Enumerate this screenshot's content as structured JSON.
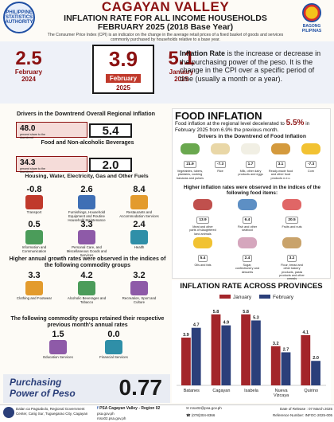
{
  "header": {
    "title": "CAGAYAN VALLEY",
    "subtitle": "INFLATION RATE FOR ALL INCOME HOUSEHOLDS",
    "period": "FEBRUARY 2025 (2018 Base Year)",
    "cpi_note": "The Consumer Price Index (CPI) is an indicator on the change in the average retail prices of a fixed basket of goods and services commonly purchased by households relative to a base year.",
    "logo_left_text": "PHILIPPINE STATISTICS AUTHORITY",
    "logo_right_text": "BAGONG PILIPINAS"
  },
  "headline": {
    "left": {
      "value": "2.5",
      "label1": "February",
      "label2": "2024"
    },
    "main": {
      "value": "3.9",
      "label1": "February",
      "label2": "2025"
    },
    "right": {
      "value": "5.1",
      "label1": "January",
      "label2": "2025"
    },
    "definition_bold": "Inflation Rate",
    "definition_rest": " is the increase or decrease in the purchasing power of the peso. It is the change in the CPI over a specific period of time (usually a month or a year)."
  },
  "drivers": {
    "title": "Drivers in the Downtrend Overall Regional Inflation",
    "items": [
      {
        "from": "48.0",
        "note": "percent share to the downtrend",
        "value": "5.4",
        "label": "Food and Non-alcoholic Beverages"
      },
      {
        "from": "34.3",
        "note": "percent share to the downtrend",
        "value": "2.0",
        "label": "Housing, Water, Electricity, Gas and Other Fuels"
      }
    ]
  },
  "commodities": [
    {
      "value": "-0.8",
      "label": "Transport"
    },
    {
      "value": "2.6",
      "label": "Furnishings, Household Equipment and Routine Household Maintenance"
    },
    {
      "value": "8.4",
      "label": "Restaurants and Accommodation Services"
    },
    {
      "value": "0.5",
      "label": "Information and Communication"
    },
    {
      "value": "3.3",
      "label": "Personal Care, and Miscellaneous Goods and Services"
    },
    {
      "value": "2.4",
      "label": "Health"
    }
  ],
  "higher_annual": {
    "title": "Higher annual growth rates were observed in the indices of the following commodity groups",
    "items": [
      {
        "value": "3.3",
        "label": "Clothing and Footwear"
      },
      {
        "value": "4.2",
        "label": "Alcoholic Beverages and Tobacco"
      },
      {
        "value": "3.2",
        "label": "Recreation, Sport and Culture"
      }
    ]
  },
  "retained": {
    "title": "The following commodity groups retained their respective previous month's annual rates",
    "items": [
      {
        "value": "1.5",
        "label": "Education Services"
      },
      {
        "value": "0.0",
        "label": "Financial Services"
      }
    ]
  },
  "purchasing": {
    "label1": "Purchasing",
    "label2": "Power of Peso",
    "value": "0.77"
  },
  "food_inflation": {
    "title": "FOOD INFLATION",
    "desc_pre": "Food inflation at the regional level decelerated to ",
    "desc_value": "5.5%",
    "desc_post": " in February 2025 from 6.9% the previous month.",
    "drivers_title": "Drivers in the Downtrend of Food Inflation",
    "drivers": [
      {
        "value": "21.9",
        "label": "Vegetables, tubers, plantains, cooking bananas and pulses"
      },
      {
        "value": "-7.3",
        "label": "Rice"
      },
      {
        "value": "1.7",
        "label": "Milk, other dairy products and eggs"
      },
      {
        "value": "3.1",
        "label": "Ready-made food and other food products n.e.c."
      },
      {
        "value": "-7.3",
        "label": "Corn"
      }
    ],
    "higher_title": "Higher inflation rates were observed in the indices of the following food items:",
    "higher": [
      {
        "value": "13.9",
        "label": "Meat and other parts of slaughtered land animals"
      },
      {
        "value": "6.4",
        "label": "Fish and other seafood"
      },
      {
        "value": "20.5",
        "label": "Fruits and nuts"
      },
      {
        "value": "5.4",
        "label": "Oils and fats"
      },
      {
        "value": "2.4",
        "label": "Sugar, confectionery and desserts"
      },
      {
        "value": "3.2",
        "label": "Flour, bread and other bakery products, pasta products and other cereals"
      }
    ]
  },
  "provinces_title": "INFLATION RATE ACROSS PROVINCES",
  "chart_data": {
    "type": "bar",
    "title": "INFLATION RATE ACROSS PROVINCES",
    "categories": [
      "Batanes",
      "Cagayan",
      "Isabela",
      "Nueva Vizcaya",
      "Quirino"
    ],
    "series": [
      {
        "name": "January",
        "color": "#a3252a",
        "values": [
          3.9,
          5.8,
          5.8,
          3.2,
          4.1
        ]
      },
      {
        "name": "February",
        "color": "#2b3f7a",
        "values": [
          4.7,
          4.9,
          5.3,
          2.7,
          2.0
        ]
      }
    ],
    "ylim": [
      0,
      6.5
    ],
    "legend": "top",
    "grid": false
  },
  "footer": {
    "address": "Dalan ca Pagsabolo, Regional Government Center, Carig Sur, Tuguegarao City, Cagayan",
    "fb": "PSA Cagayan Valley - Region 02",
    "email": "rsso02@psa.gov.ph",
    "web1": "psa.gov.ph",
    "web2": "rsso02.psa.gov.ph",
    "phone": "(078)304-8366",
    "release": "Date of Release : 07 March 2025",
    "reference": "Reference Number: INFOC-2025-005"
  },
  "colors": {
    "maroon": "#8b1111",
    "navy": "#2b3f7a",
    "red": "#a3252a"
  }
}
